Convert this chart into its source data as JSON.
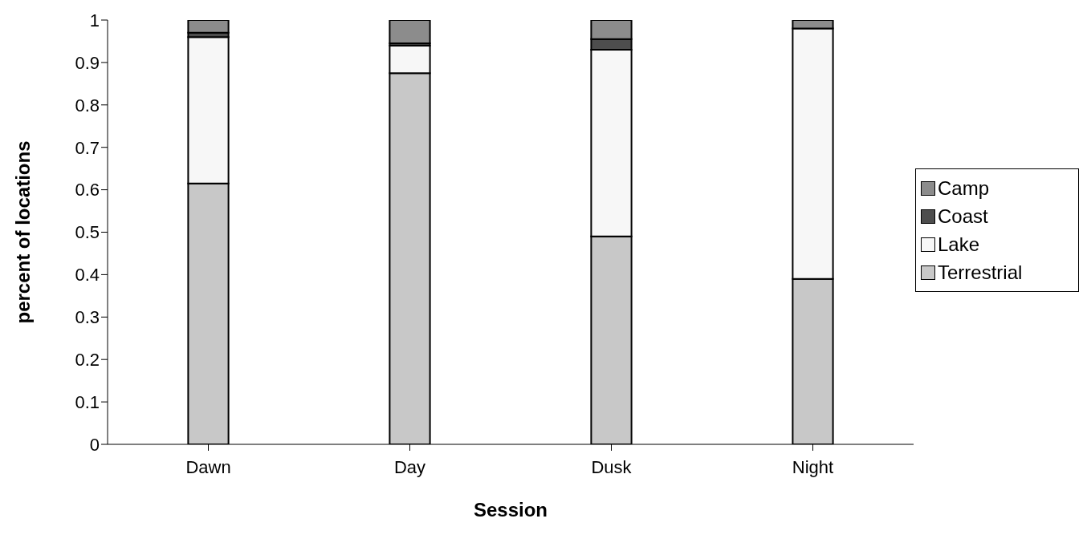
{
  "chart_data": {
    "type": "bar",
    "stacked": true,
    "xlabel": "Session",
    "ylabel": "percent of locations",
    "categories": [
      "Dawn",
      "Day",
      "Dusk",
      "Night"
    ],
    "series": [
      {
        "name": "Terrestrial",
        "color": "#c8c8c8",
        "values": [
          0.615,
          0.875,
          0.49,
          0.39
        ]
      },
      {
        "name": "Lake",
        "color": "#f7f7f7",
        "values": [
          0.345,
          0.065,
          0.44,
          0.59
        ]
      },
      {
        "name": "Coast",
        "color": "#4d4d4d",
        "values": [
          0.01,
          0.005,
          0.025,
          0
        ]
      },
      {
        "name": "Camp",
        "color": "#8c8c8c",
        "values": [
          0.03,
          0.055,
          0.045,
          0.02
        ]
      }
    ],
    "ylim": [
      0,
      1
    ],
    "yticks": [
      0,
      0.1,
      0.2,
      0.3,
      0.4,
      0.5,
      0.6,
      0.7,
      0.8,
      0.9,
      1
    ],
    "grid": false,
    "legend": "right"
  }
}
